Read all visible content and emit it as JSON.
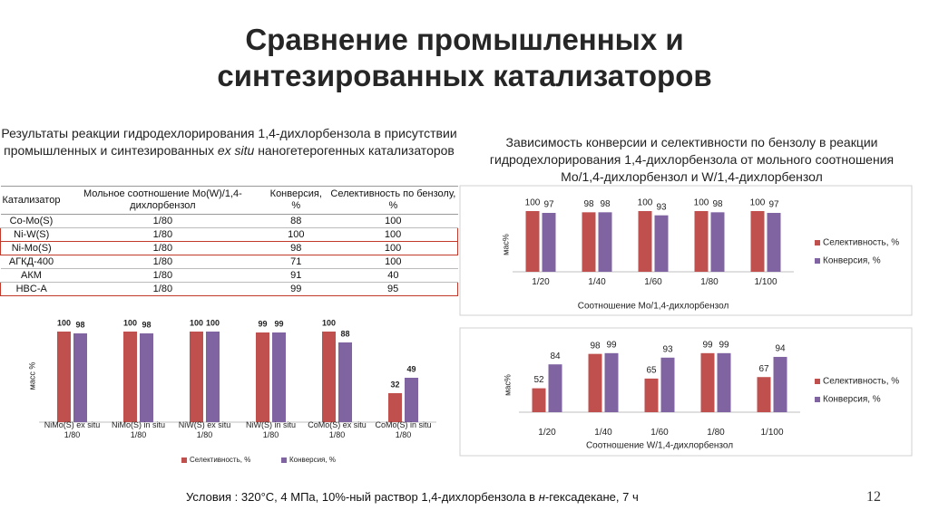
{
  "title": "Сравнение промышленных и синтезированных катализаторов",
  "table": {
    "caption": [
      "Результаты реакции гидродехлорирования 1,4-дихлорбензола в присутствии промышленных и синтезированных ",
      "ex situ",
      " наногетерогенных катализаторов"
    ],
    "columns": [
      "Катализатор",
      "Мольное соотношение Mo(W)/1,4-дихлорбензол",
      "Конверсия, %",
      "Селективность по бензолу, %"
    ],
    "rows": [
      [
        "Co-Mo(S)",
        "1/80",
        88,
        100
      ],
      [
        "Ni-W(S)",
        "1/80",
        100,
        100
      ],
      [
        "Ni-Mo(S)",
        "1/80",
        98,
        100
      ],
      [
        "АГКД-400",
        "1/80",
        71,
        100
      ],
      [
        "АКМ",
        "1/80",
        91,
        40
      ],
      [
        "HBC-A",
        "1/80",
        99,
        95
      ]
    ]
  },
  "right_title": "Зависимость конверсии и селективности по бензолу в реакции гидродехлорирования 1,4-дихлорбензола от мольного соотношения Mo/1,4-дихлорбензол и W/1,4-дихлорбензол",
  "chart_data": [
    {
      "type": "bar",
      "y_label": "масс %",
      "categories": [
        "NiMo(S) ex situ\n1/80",
        "NiMo(S) in situ\n1/80",
        "NiW(S) ex situ\n1/80",
        "NiW(S) in situ\n1/80",
        "CoMo(S) ex situ\n1/80",
        "CoMo(S) in situ\n1/80"
      ],
      "series": [
        {
          "name": "Селективность, %",
          "color": "#c0504d",
          "values": [
            100,
            100,
            100,
            99,
            100,
            32
          ]
        },
        {
          "name": "Конверсия, %",
          "color": "#8064a2",
          "values": [
            98,
            98,
            100,
            99,
            88,
            49
          ]
        }
      ],
      "ylim": [
        0,
        100
      ],
      "legend": "bottom"
    },
    {
      "type": "bar",
      "y_label": "мас%",
      "x_label": "Соотношение Mo/1,4-дихлорбензол",
      "categories": [
        "1/20",
        "1/40",
        "1/60",
        "1/80",
        "1/100"
      ],
      "series": [
        {
          "name": "Селективность, %",
          "color": "#c0504d",
          "values": [
            100,
            98,
            100,
            100,
            100
          ]
        },
        {
          "name": "Конверсия, %",
          "color": "#8064a2",
          "values": [
            97,
            98,
            93,
            98,
            97
          ]
        }
      ],
      "ylim": [
        0,
        100
      ],
      "legend": "right"
    },
    {
      "type": "bar",
      "y_label": "мас%",
      "x_label": "Соотношение W/1,4-дихлорбензол",
      "categories": [
        "1/20",
        "1/40",
        "1/60",
        "1/80",
        "1/100"
      ],
      "series": [
        {
          "name": "Селективность, %",
          "color": "#c0504d",
          "values": [
            52,
            98,
            65,
            99,
            67
          ]
        },
        {
          "name": "Конверсия, %",
          "color": "#8064a2",
          "values": [
            84,
            99,
            93,
            99,
            94
          ]
        }
      ],
      "ylim": [
        20,
        100
      ],
      "legend": "right"
    }
  ],
  "conditions": [
    "Условия : 320°C, 4 МПа, 10%-ный раствор 1,4-дихлорбензола в ",
    "н",
    "-гексадекане, 7 ч"
  ],
  "page_number": "12"
}
